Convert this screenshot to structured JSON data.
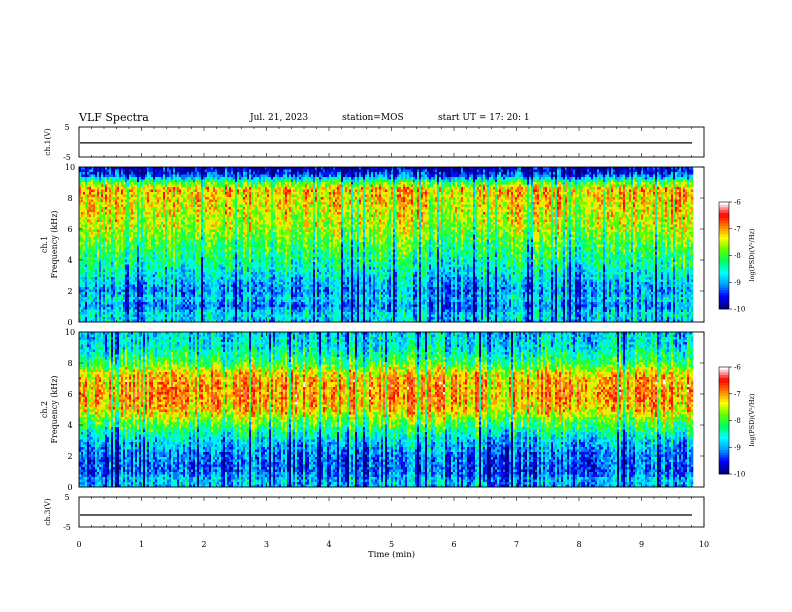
{
  "header": {
    "title": "VLF Spectra",
    "date": "Jul. 21, 2023",
    "station": "station=MOS",
    "start": "start UT =  17: 20: 1"
  },
  "colors": {
    "colormap": [
      "#000080",
      "#0000ff",
      "#00a0ff",
      "#00ffff",
      "#00ff60",
      "#60ff00",
      "#ffff00",
      "#ff8000",
      "#ff0000",
      "#ffffff"
    ],
    "trace": "#000000"
  },
  "chart_data": [
    {
      "type": "line",
      "panel": "ch1-waveform",
      "ylabel": "ch.1(V)",
      "ylim": [
        -5,
        5
      ],
      "yticks": [
        "5",
        "-5"
      ],
      "xlim": [
        0,
        10
      ],
      "series": [
        {
          "values": [
            -0.3,
            -0.3
          ]
        }
      ]
    },
    {
      "type": "heatmap",
      "panel": "ch1-spectrogram",
      "ylabel": "ch.1\nFrequency (kHz)",
      "ylim": [
        0,
        10
      ],
      "yticks": [
        "0",
        "2",
        "4",
        "6",
        "8",
        "10"
      ],
      "xlim": [
        0,
        9.83
      ],
      "frequency_profile_log_psd": [
        [
          0.0,
          -8.9
        ],
        [
          0.5,
          -8.7
        ],
        [
          1.0,
          -9.2
        ],
        [
          1.5,
          -8.8
        ],
        [
          2.0,
          -9.1
        ],
        [
          3.0,
          -8.7
        ],
        [
          4.0,
          -8.3
        ],
        [
          5.0,
          -8.0
        ],
        [
          6.0,
          -7.6
        ],
        [
          7.0,
          -7.4
        ],
        [
          8.0,
          -7.2
        ],
        [
          8.6,
          -7.1
        ],
        [
          9.0,
          -8.0
        ],
        [
          9.5,
          -9.4
        ],
        [
          10.0,
          -9.9
        ]
      ],
      "colorbar": {
        "label": "log(PSD)(V²/Hz)",
        "ticks": [
          "-6",
          "-7",
          "-8",
          "-9",
          "-10"
        ],
        "range": [
          -10,
          -6
        ]
      }
    },
    {
      "type": "heatmap",
      "panel": "ch2-spectrogram",
      "ylabel": "ch.2\nFrequency (kHz)",
      "ylim": [
        0,
        10
      ],
      "yticks": [
        "0",
        "2",
        "4",
        "6",
        "8",
        "10"
      ],
      "xlim": [
        0,
        9.83
      ],
      "frequency_profile_log_psd": [
        [
          0.0,
          -9.0
        ],
        [
          0.5,
          -8.9
        ],
        [
          1.0,
          -9.3
        ],
        [
          2.0,
          -9.2
        ],
        [
          3.0,
          -8.8
        ],
        [
          4.0,
          -8.0
        ],
        [
          4.5,
          -7.6
        ],
        [
          5.0,
          -7.1
        ],
        [
          6.0,
          -6.9
        ],
        [
          7.0,
          -7.0
        ],
        [
          7.5,
          -7.4
        ],
        [
          8.0,
          -8.0
        ],
        [
          9.0,
          -8.6
        ],
        [
          10.0,
          -8.8
        ]
      ],
      "colorbar": {
        "label": "log(PSD)(V²/Hz)",
        "ticks": [
          "-6",
          "-7",
          "-8",
          "-9",
          "-10"
        ],
        "range": [
          -10,
          -6
        ]
      }
    },
    {
      "type": "line",
      "panel": "ch3-waveform",
      "ylabel": "ch.3(V)",
      "ylim": [
        -5,
        5
      ],
      "yticks": [
        "5",
        "-5"
      ],
      "xlim": [
        0,
        10
      ],
      "series": [
        {
          "values": [
            -1.0,
            -1.0
          ]
        }
      ]
    }
  ],
  "xaxis": {
    "label": "Time (min)",
    "range": [
      0,
      10
    ],
    "ticks": [
      "0",
      "1",
      "2",
      "3",
      "4",
      "5",
      "6",
      "7",
      "8",
      "9",
      "10"
    ]
  }
}
